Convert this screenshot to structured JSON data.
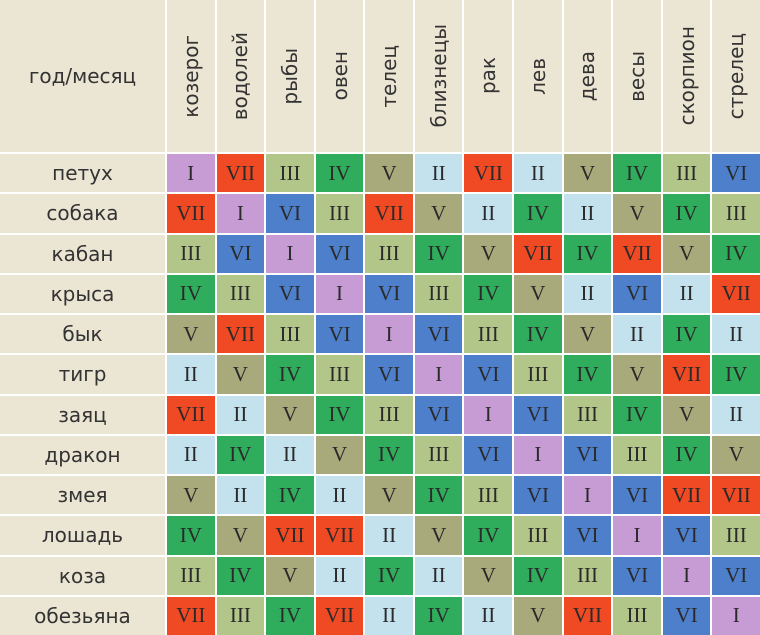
{
  "table": {
    "corner": "год/месяц",
    "columns": [
      "козерог",
      "водолей",
      "рыбы",
      "овен",
      "телец",
      "близнецы",
      "рак",
      "лев",
      "дева",
      "весы",
      "скорпион",
      "стрелец"
    ],
    "rows": [
      {
        "label": "петух",
        "cells": [
          "I",
          "VII",
          "III",
          "IV",
          "V",
          "II",
          "VII",
          "II",
          "V",
          "IV",
          "III",
          "VI"
        ]
      },
      {
        "label": "собака",
        "cells": [
          "VII",
          "I",
          "VI",
          "III",
          "VII",
          "V",
          "II",
          "IV",
          "II",
          "V",
          "IV",
          "III"
        ]
      },
      {
        "label": "кабан",
        "cells": [
          "III",
          "VI",
          "I",
          "VI",
          "III",
          "IV",
          "V",
          "VII",
          "IV",
          "VII",
          "V",
          "IV"
        ]
      },
      {
        "label": "крыса",
        "cells": [
          "IV",
          "III",
          "VI",
          "I",
          "VI",
          "III",
          "IV",
          "V",
          "II",
          "VI",
          "II",
          "VII"
        ]
      },
      {
        "label": "бык",
        "cells": [
          "V",
          "VII",
          "III",
          "VI",
          "I",
          "VI",
          "III",
          "IV",
          "V",
          "II",
          "IV",
          "II"
        ]
      },
      {
        "label": "тигр",
        "cells": [
          "II",
          "V",
          "IV",
          "III",
          "VI",
          "I",
          "VI",
          "III",
          "IV",
          "V",
          "VII",
          "IV"
        ]
      },
      {
        "label": "заяц",
        "cells": [
          "VII",
          "II",
          "V",
          "IV",
          "III",
          "VI",
          "I",
          "VI",
          "III",
          "IV",
          "V",
          "II"
        ]
      },
      {
        "label": "дракон",
        "cells": [
          "II",
          "IV",
          "II",
          "V",
          "IV",
          "III",
          "VI",
          "I",
          "VI",
          "III",
          "IV",
          "V"
        ]
      },
      {
        "label": "змея",
        "cells": [
          "V",
          "II",
          "IV",
          "II",
          "V",
          "IV",
          "III",
          "VI",
          "I",
          "VI",
          "VII",
          "VII"
        ]
      },
      {
        "label": "лошадь",
        "cells": [
          "IV",
          "V",
          "VII",
          "VII",
          "II",
          "V",
          "IV",
          "III",
          "VI",
          "I",
          "VI",
          "III"
        ]
      },
      {
        "label": "коза",
        "cells": [
          "III",
          "IV",
          "V",
          "II",
          "IV",
          "II",
          "V",
          "IV",
          "III",
          "VI",
          "I",
          "VI"
        ]
      },
      {
        "label": "обезьяна",
        "cells": [
          "VII",
          "III",
          "IV",
          "VII",
          "II",
          "IV",
          "II",
          "V",
          "VII",
          "III",
          "VI",
          "I"
        ]
      }
    ]
  },
  "colors": {
    "I": "#c79bd3",
    "II": "#c3e2ee",
    "III": "#b3c68a",
    "IV": "#2fad5c",
    "V": "#a9aa7c",
    "VI": "#4d7fcb",
    "VII": "#ef4a24"
  }
}
